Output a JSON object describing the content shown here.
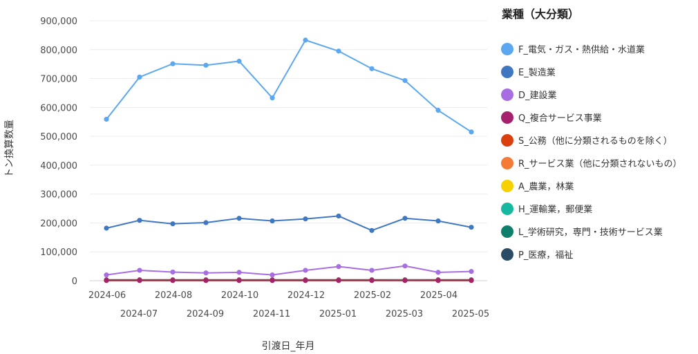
{
  "chart_data": {
    "type": "line",
    "xlabel": "引渡日_年月",
    "ylabel": "トン換算数量",
    "ylim": [
      0,
      900000
    ],
    "y_ticks": [
      0,
      100000,
      200000,
      300000,
      400000,
      500000,
      600000,
      700000,
      800000,
      900000
    ],
    "y_tick_labels": [
      "0",
      "100,000",
      "200,000",
      "300,000",
      "400,000",
      "500,000",
      "600,000",
      "700,000",
      "800,000",
      "900,000"
    ],
    "categories": [
      "2024-06",
      "2024-07",
      "2024-08",
      "2024-09",
      "2024-10",
      "2024-11",
      "2024-12",
      "2025-01",
      "2025-02",
      "2025-03",
      "2025-04",
      "2025-05"
    ],
    "x_tick_labels_row1": [
      "2024-06",
      "2024-08",
      "2024-10",
      "2024-12",
      "2025-02",
      "2025-04"
    ],
    "x_tick_labels_row2": [
      "2024-07",
      "2024-09",
      "2024-11",
      "2025-01",
      "2025-03",
      "2025-05"
    ],
    "grid": true,
    "legend_title": "業種（大分類）",
    "legend_position": "right",
    "series": [
      {
        "name": "F_電気・ガス・熱供給・水道業",
        "color": "#5ba8f0",
        "values": [
          559000,
          705000,
          751000,
          746000,
          760000,
          633000,
          833000,
          795000,
          734000,
          693000,
          590000,
          515000
        ]
      },
      {
        "name": "E_製造業",
        "color": "#3f78c0",
        "values": [
          182000,
          209000,
          197000,
          201000,
          216000,
          207000,
          214000,
          224000,
          174000,
          216000,
          207000,
          185000
        ]
      },
      {
        "name": "D_建設業",
        "color": "#a66ee0",
        "values": [
          20000,
          36000,
          30000,
          27000,
          29000,
          20000,
          36000,
          49000,
          36000,
          51000,
          29000,
          32000
        ]
      },
      {
        "name": "Q_複合サービス事業",
        "color": "#a5216e",
        "values": [
          1000,
          1000,
          1000,
          1000,
          1000,
          1000,
          1000,
          1000,
          1000,
          1000,
          1000,
          1000
        ]
      },
      {
        "name": "S_公務（他に分類されるものを除く）",
        "color": "#d9400e",
        "values": [
          1500,
          1500,
          1500,
          1500,
          1500,
          1500,
          1500,
          1500,
          1500,
          1500,
          1500,
          1500
        ]
      },
      {
        "name": "R_サービス業（他に分類されないもの）",
        "color": "#f57a35",
        "values": [
          800,
          800,
          800,
          800,
          800,
          800,
          800,
          800,
          800,
          800,
          800,
          800
        ]
      },
      {
        "name": "A_農業，林業",
        "color": "#f7d000",
        "values": [
          500,
          500,
          500,
          500,
          500,
          500,
          500,
          500,
          500,
          500,
          500,
          500
        ]
      },
      {
        "name": "H_運輸業，郵便業",
        "color": "#17b8a0",
        "values": [
          1000,
          1000,
          1000,
          1000,
          1000,
          1000,
          1000,
          1000,
          1000,
          2000,
          1000,
          1000
        ]
      },
      {
        "name": "L_学術研究，専門・技術サービス業",
        "color": "#0e7f6b",
        "values": [
          2000,
          2000,
          2000,
          2000,
          2000,
          2000,
          2000,
          2000,
          2000,
          2000,
          2000,
          2000
        ]
      },
      {
        "name": "P_医療，福祉",
        "color": "#2a4b66",
        "values": [
          3000,
          3000,
          3000,
          3000,
          3000,
          3000,
          3000,
          3000,
          3000,
          3000,
          3000,
          3000
        ]
      }
    ]
  }
}
